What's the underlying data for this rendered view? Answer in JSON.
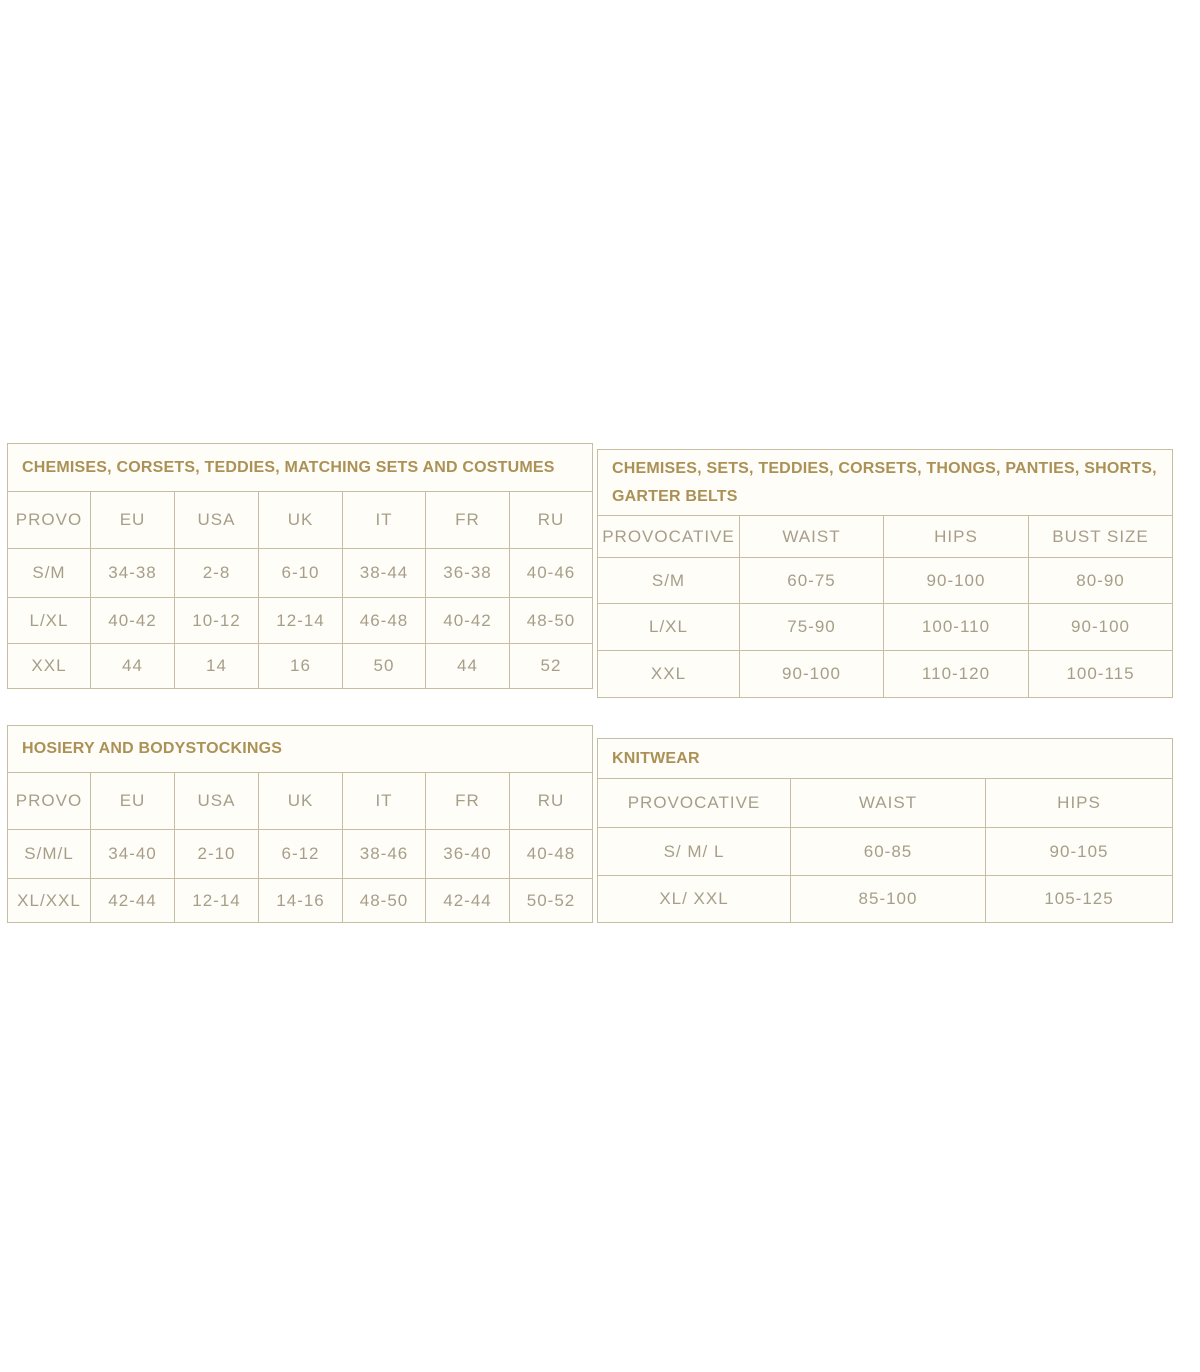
{
  "colors": {
    "title_text": "#ab9156",
    "cell_text": "#a79e8a",
    "table_border": "#c6bda3",
    "cell_background": "#fffdf7",
    "page_background": "#ffffff"
  },
  "tables": [
    {
      "title": "CHEMISES, CORSETS, TEDDIES, MATCHING SETS AND COSTUMES",
      "columns": [
        "PROVO",
        "EU",
        "USA",
        "UK",
        "IT",
        "FR",
        "RU"
      ],
      "rows": [
        [
          "S/M",
          "34-38",
          "2-8",
          "6-10",
          "38-44",
          "36-38",
          "40-46"
        ],
        [
          "L/XL",
          "40-42",
          "10-12",
          "12-14",
          "46-48",
          "40-42",
          "48-50"
        ],
        [
          "XXL",
          "44",
          "14",
          "16",
          "50",
          "44",
          "52"
        ]
      ]
    },
    {
      "title": "CHEMISES, SETS, TEDDIES, CORSETS, THONGS, PANTIES, SHORTS,\nGARTER BELTS",
      "columns": [
        "PROVOCATIVE",
        "WAIST",
        "HIPS",
        "BUST SIZE"
      ],
      "rows": [
        [
          "S/M",
          "60-75",
          "90-100",
          "80-90"
        ],
        [
          "L/XL",
          "75-90",
          "100-110",
          "90-100"
        ],
        [
          "XXL",
          "90-100",
          "110-120",
          "100-115"
        ]
      ]
    },
    {
      "title": "HOSIERY AND BODYSTOCKINGS",
      "columns": [
        "PROVO",
        "EU",
        "USA",
        "UK",
        "IT",
        "FR",
        "RU"
      ],
      "rows": [
        [
          "S/M/L",
          "34-40",
          "2-10",
          "6-12",
          "38-46",
          "36-40",
          "40-48"
        ],
        [
          "XL/XXL",
          "42-44",
          "12-14",
          "14-16",
          "48-50",
          "42-44",
          "50-52"
        ]
      ]
    },
    {
      "title": "KNITWEAR",
      "columns": [
        "PROVOCATIVE",
        "WAIST",
        "HIPS"
      ],
      "rows": [
        [
          "S/ M/ L",
          "60-85",
          "90-105"
        ],
        [
          "XL/ XXL",
          "85-100",
          "105-125"
        ]
      ]
    }
  ]
}
